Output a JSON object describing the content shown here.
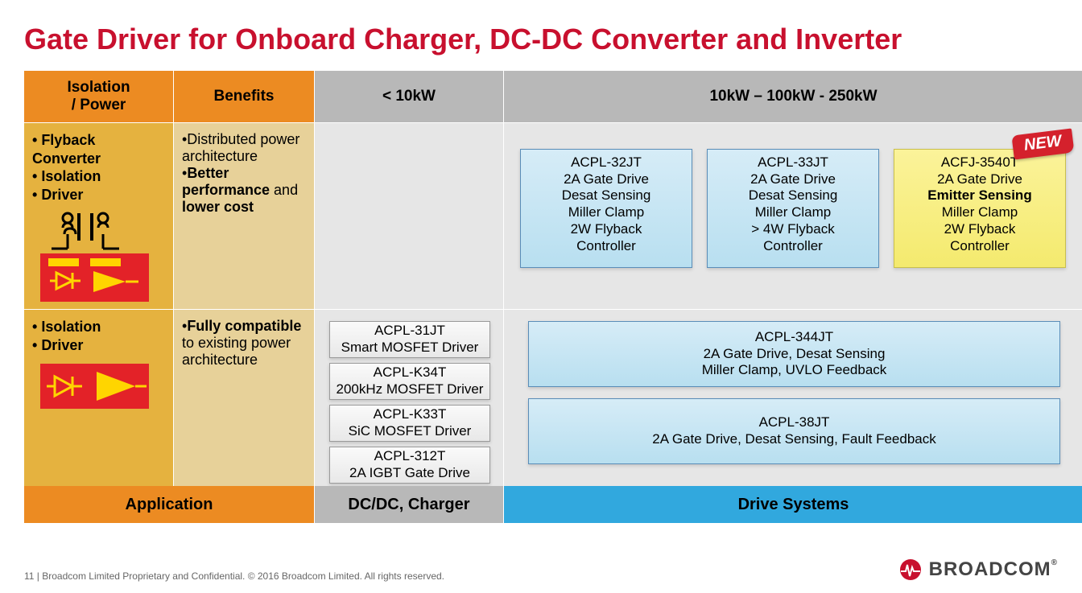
{
  "title": "Gate Driver for Onboard Charger, DC-DC Converter and Inverter",
  "colors": {
    "title": "#c8102e",
    "orange_header": "#ec8b22",
    "gray_header": "#b8b8b8",
    "gold_body": "#e5b23f",
    "tan_body": "#e7d199",
    "gray_body": "#e6e6e6",
    "cyan_footer": "#31a8de",
    "card_blue_top": "#d6ecf7",
    "card_blue_bottom": "#b8dff0",
    "card_yellow_top": "#fbf39a",
    "card_yellow_bottom": "#f4ea6e",
    "card_gray_top": "#fafafa",
    "card_gray_bottom": "#e8e8e8",
    "red_graphic": "#e32228",
    "yellow_graphic": "#ffd500",
    "new_badge": "#d4212c"
  },
  "header": {
    "col0_line1": "Isolation",
    "col0_line2": "/ Power",
    "col1": "Benefits",
    "col2": "< 10kW",
    "col3": "10kW – 100kW - 250kW"
  },
  "row1": {
    "iso_bullets": [
      "Flyback Converter",
      "Isolation",
      "Driver"
    ],
    "benefits_html": "•Distributed power architecture<br>•<b>Better performance</b> and <b>lower cost</b>",
    "cards": [
      {
        "lines": [
          "ACPL-32JT",
          "2A Gate Drive",
          "Desat Sensing",
          "Miller Clamp",
          "2W Flyback",
          "Controller"
        ],
        "style": "blue"
      },
      {
        "lines": [
          "ACPL-33JT",
          "2A Gate Drive",
          "Desat Sensing",
          "Miller Clamp",
          "> 4W Flyback",
          "Controller"
        ],
        "style": "blue"
      },
      {
        "lines": [
          "ACFJ-3540T",
          "2A Gate Drive",
          "<b>Emitter Sensing</b>",
          "Miller Clamp",
          "2W Flyback",
          "Controller"
        ],
        "style": "yellow",
        "new": true
      }
    ]
  },
  "row2": {
    "iso_bullets": [
      "Isolation",
      "Driver"
    ],
    "benefits_html": "•<b>Fully compatible</b> to existing power architecture",
    "low_cards": [
      {
        "l1": "ACPL-31JT",
        "l2": "Smart MOSFET Driver"
      },
      {
        "l1": "ACPL-K34T",
        "l2": "200kHz MOSFET Driver"
      },
      {
        "l1": "ACPL-K33T",
        "l2": "SiC MOSFET Driver"
      },
      {
        "l1": "ACPL-312T",
        "l2": "2A IGBT Gate Drive"
      }
    ],
    "hi_cards": [
      {
        "l1": "ACPL-344JT",
        "l2": "2A Gate Drive, Desat Sensing",
        "l3": "Miller Clamp, UVLO Feedback"
      },
      {
        "l1": "ACPL-38JT",
        "l2": "2A Gate Drive, Desat  Sensing, Fault Feedback",
        "l3": ""
      }
    ]
  },
  "footer_row": {
    "app": "Application",
    "dc": "DC/DC, Charger",
    "ds": "Drive Systems"
  },
  "page_footer": {
    "left": "11    |    Broadcom Limited Proprietary and Confidential.  © 2016 Broadcom Limited.  All rights reserved.",
    "logo_text": "BROADCOM",
    "tm": "®"
  },
  "new_label": "NEW",
  "watermark": ""
}
